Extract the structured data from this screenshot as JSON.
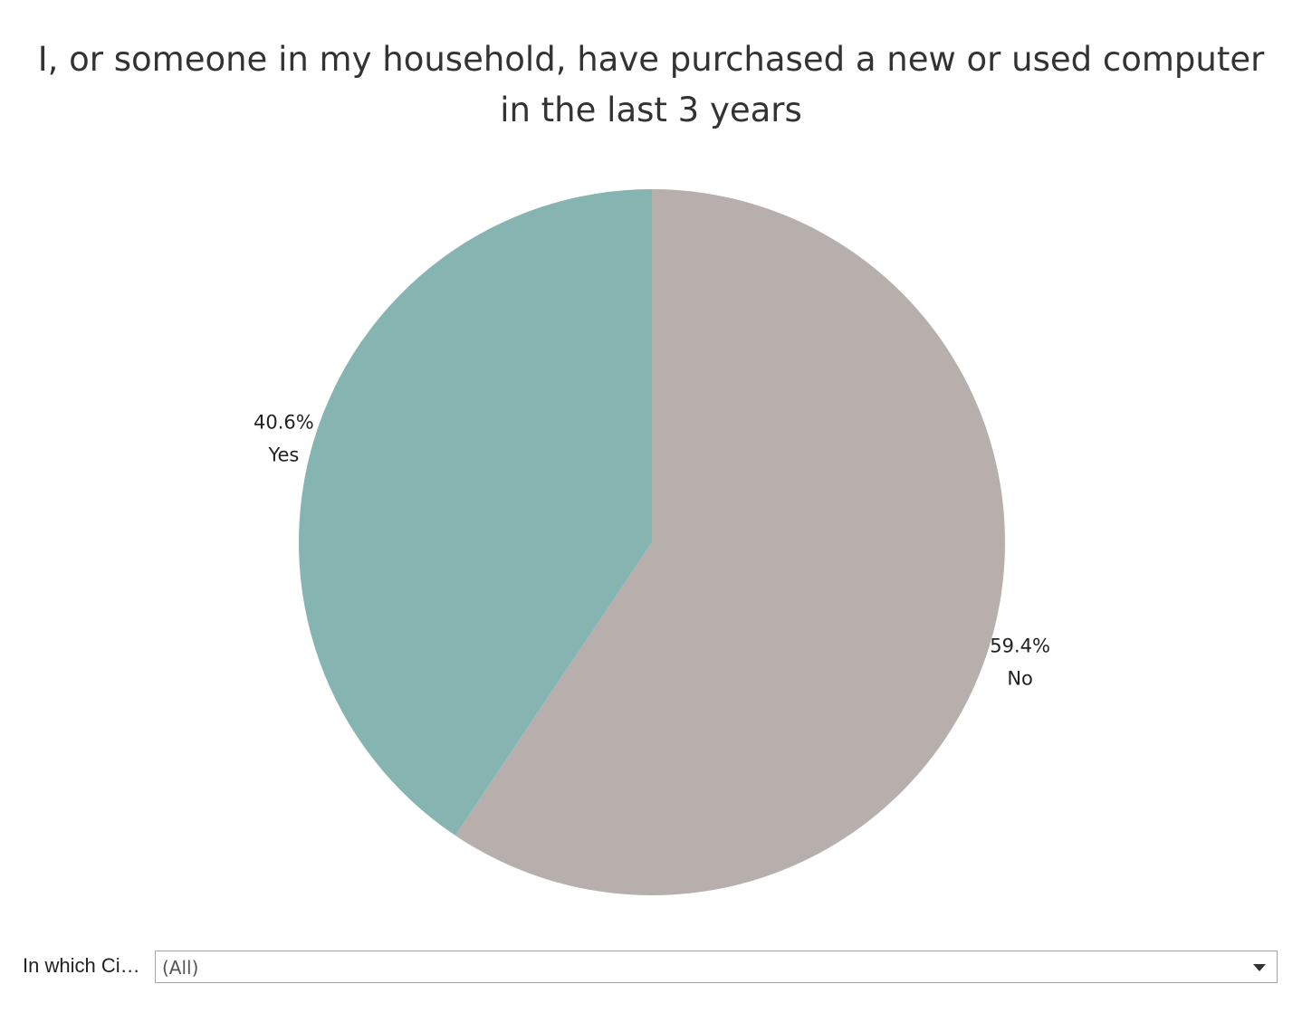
{
  "chart_data": {
    "type": "pie",
    "title_lines": [
      "I, or someone in my household, have purchased a new or used computer",
      "in the last 3 years"
    ],
    "slices": [
      {
        "label": "No",
        "value": 59.4,
        "value_text": "59.4%",
        "color": "#b7afab"
      },
      {
        "label": "Yes",
        "value": 40.6,
        "value_text": "40.6%",
        "color": "#86b4b1"
      }
    ],
    "start": "12 o'clock",
    "direction": "clockwise"
  },
  "filter": {
    "label": "In which Ci…",
    "value": "(All)"
  }
}
